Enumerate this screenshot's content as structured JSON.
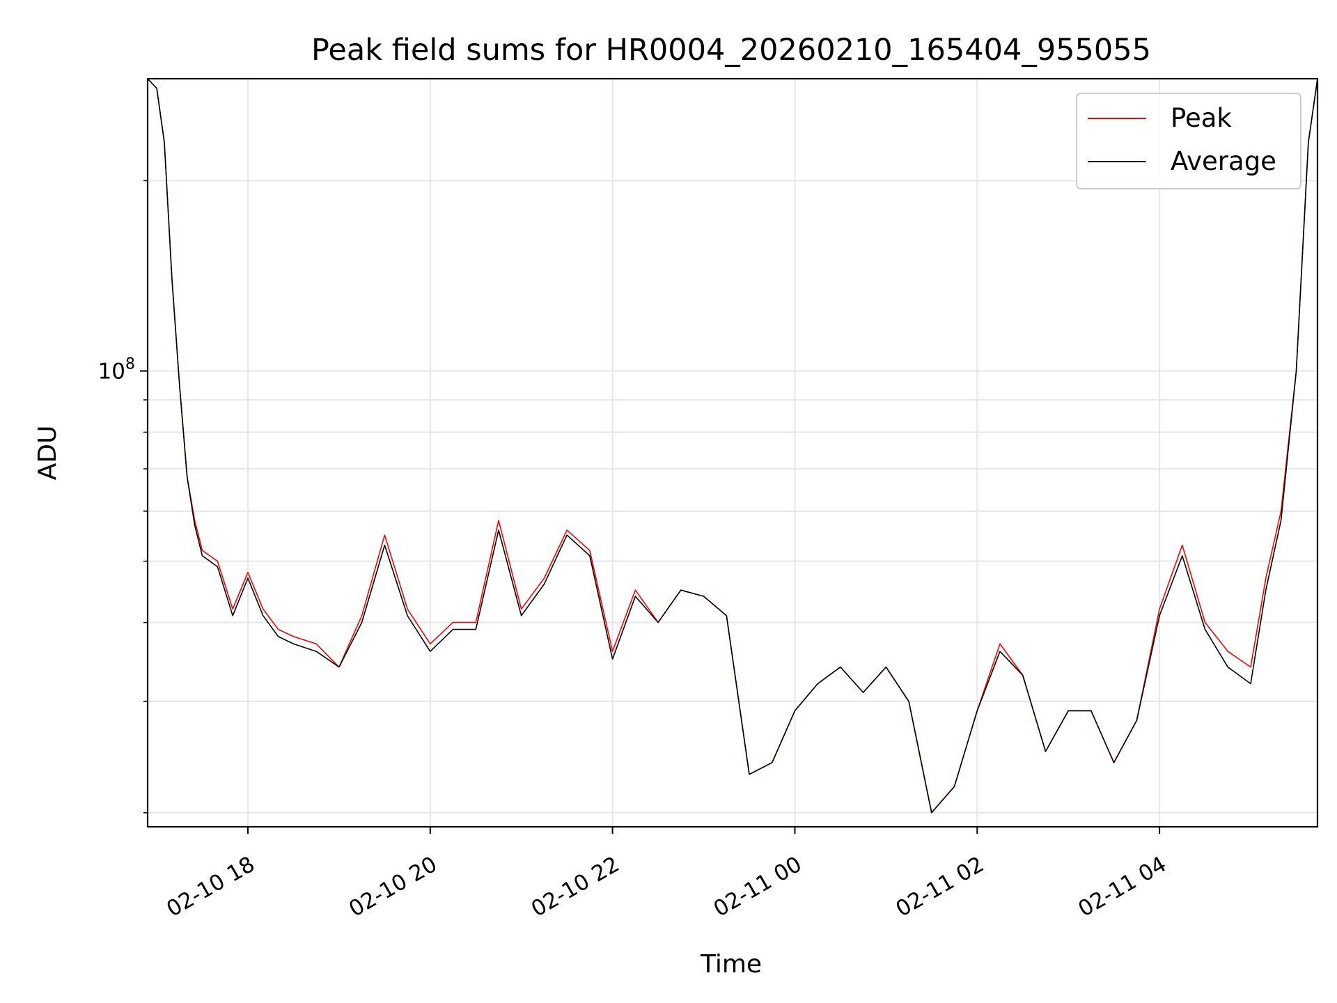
{
  "chart_data": {
    "type": "line",
    "title": "Peak field sums for HR0004_20260210_165404_955055",
    "xlabel": "Time",
    "ylabel": "ADU",
    "x_type": "datetime",
    "x_range": [
      "2026-02-10 16:54",
      "2026-02-11 05:44"
    ],
    "y_scale": "log",
    "ylim": [
      19000000,
      290000000
    ],
    "grid": true,
    "legend_position": "top-right",
    "x_ticks": [
      {
        "value": "2026-02-10 18:00",
        "label": "02-10 18"
      },
      {
        "value": "2026-02-10 20:00",
        "label": "02-10 20"
      },
      {
        "value": "2026-02-10 22:00",
        "label": "02-10 22"
      },
      {
        "value": "2026-02-11 00:00",
        "label": "02-11 00"
      },
      {
        "value": "2026-02-11 02:00",
        "label": "02-11 02"
      },
      {
        "value": "2026-02-11 04:00",
        "label": "02-11 04"
      }
    ],
    "y_major_tick": {
      "value": 100000000,
      "base": "10",
      "exponent": "8"
    },
    "y_minor_ticks": [
      20000000,
      30000000,
      40000000,
      50000000,
      60000000,
      70000000,
      80000000,
      90000000,
      200000000
    ],
    "series": [
      {
        "name": "Peak",
        "color": "#ff0000",
        "x": [
          "2026-02-10 16:54",
          "2026-02-10 17:00",
          "2026-02-10 17:05",
          "2026-02-10 17:10",
          "2026-02-10 17:15",
          "2026-02-10 17:20",
          "2026-02-10 17:25",
          "2026-02-10 17:30",
          "2026-02-10 17:40",
          "2026-02-10 17:50",
          "2026-02-10 18:00",
          "2026-02-10 18:10",
          "2026-02-10 18:20",
          "2026-02-10 18:30",
          "2026-02-10 18:45",
          "2026-02-10 19:00",
          "2026-02-10 19:15",
          "2026-02-10 19:30",
          "2026-02-10 19:45",
          "2026-02-10 20:00",
          "2026-02-10 20:15",
          "2026-02-10 20:30",
          "2026-02-10 20:45",
          "2026-02-10 21:00",
          "2026-02-10 21:15",
          "2026-02-10 21:30",
          "2026-02-10 21:45",
          "2026-02-10 22:00",
          "2026-02-10 22:15",
          "2026-02-10 22:30",
          "2026-02-10 22:45",
          "2026-02-10 23:00",
          "2026-02-10 23:15",
          "2026-02-10 23:30",
          "2026-02-10 23:45",
          "2026-02-11 00:00",
          "2026-02-11 00:15",
          "2026-02-11 00:30",
          "2026-02-11 00:45",
          "2026-02-11 01:00",
          "2026-02-11 01:15",
          "2026-02-11 01:30",
          "2026-02-11 01:45",
          "2026-02-11 02:00",
          "2026-02-11 02:15",
          "2026-02-11 02:30",
          "2026-02-11 02:45",
          "2026-02-11 03:00",
          "2026-02-11 03:15",
          "2026-02-11 03:30",
          "2026-02-11 03:45",
          "2026-02-11 04:00",
          "2026-02-11 04:15",
          "2026-02-11 04:30",
          "2026-02-11 04:45",
          "2026-02-11 05:00",
          "2026-02-11 05:10",
          "2026-02-11 05:20",
          "2026-02-11 05:30",
          "2026-02-11 05:38",
          "2026-02-11 05:44"
        ],
        "y": [
          290000000,
          280000000,
          230000000,
          140000000,
          95000000,
          68000000,
          58000000,
          52000000,
          50000000,
          42000000,
          48000000,
          42000000,
          39000000,
          38000000,
          37000000,
          34000000,
          41000000,
          55000000,
          42000000,
          37000000,
          40000000,
          40000000,
          58000000,
          42000000,
          47000000,
          56000000,
          52000000,
          36000000,
          45000000,
          40000000,
          45000000,
          44000000,
          41000000,
          23000000,
          24000000,
          29000000,
          32000000,
          34000000,
          31000000,
          34000000,
          30000000,
          20000000,
          22000000,
          29000000,
          37000000,
          33000000,
          25000000,
          29000000,
          29000000,
          24000000,
          28000000,
          42000000,
          53000000,
          40000000,
          36000000,
          34000000,
          47000000,
          60000000,
          100000000,
          230000000,
          290000000
        ]
      },
      {
        "name": "Average",
        "color": "#000000",
        "x": [
          "2026-02-10 16:54",
          "2026-02-10 17:00",
          "2026-02-10 17:05",
          "2026-02-10 17:10",
          "2026-02-10 17:15",
          "2026-02-10 17:20",
          "2026-02-10 17:25",
          "2026-02-10 17:30",
          "2026-02-10 17:40",
          "2026-02-10 17:50",
          "2026-02-10 18:00",
          "2026-02-10 18:10",
          "2026-02-10 18:20",
          "2026-02-10 18:30",
          "2026-02-10 18:45",
          "2026-02-10 19:00",
          "2026-02-10 19:15",
          "2026-02-10 19:30",
          "2026-02-10 19:45",
          "2026-02-10 20:00",
          "2026-02-10 20:15",
          "2026-02-10 20:30",
          "2026-02-10 20:45",
          "2026-02-10 21:00",
          "2026-02-10 21:15",
          "2026-02-10 21:30",
          "2026-02-10 21:45",
          "2026-02-10 22:00",
          "2026-02-10 22:15",
          "2026-02-10 22:30",
          "2026-02-10 22:45",
          "2026-02-10 23:00",
          "2026-02-10 23:15",
          "2026-02-10 23:30",
          "2026-02-10 23:45",
          "2026-02-11 00:00",
          "2026-02-11 00:15",
          "2026-02-11 00:30",
          "2026-02-11 00:45",
          "2026-02-11 01:00",
          "2026-02-11 01:15",
          "2026-02-11 01:30",
          "2026-02-11 01:45",
          "2026-02-11 02:00",
          "2026-02-11 02:15",
          "2026-02-11 02:30",
          "2026-02-11 02:45",
          "2026-02-11 03:00",
          "2026-02-11 03:15",
          "2026-02-11 03:30",
          "2026-02-11 03:45",
          "2026-02-11 04:00",
          "2026-02-11 04:15",
          "2026-02-11 04:30",
          "2026-02-11 04:45",
          "2026-02-11 05:00",
          "2026-02-11 05:10",
          "2026-02-11 05:20",
          "2026-02-11 05:30",
          "2026-02-11 05:38",
          "2026-02-11 05:44"
        ],
        "y": [
          290000000,
          280000000,
          230000000,
          140000000,
          95000000,
          68000000,
          57000000,
          51000000,
          49000000,
          41000000,
          47000000,
          41000000,
          38000000,
          37000000,
          36000000,
          34000000,
          40000000,
          53000000,
          41000000,
          36000000,
          39000000,
          39000000,
          56000000,
          41000000,
          46000000,
          55000000,
          51000000,
          35000000,
          44000000,
          40000000,
          45000000,
          44000000,
          41000000,
          23000000,
          24000000,
          29000000,
          32000000,
          34000000,
          31000000,
          34000000,
          30000000,
          20000000,
          22000000,
          29000000,
          36000000,
          33000000,
          25000000,
          29000000,
          29000000,
          24000000,
          28000000,
          41000000,
          51000000,
          39000000,
          34000000,
          32000000,
          45000000,
          58000000,
          100000000,
          230000000,
          290000000
        ]
      }
    ]
  }
}
